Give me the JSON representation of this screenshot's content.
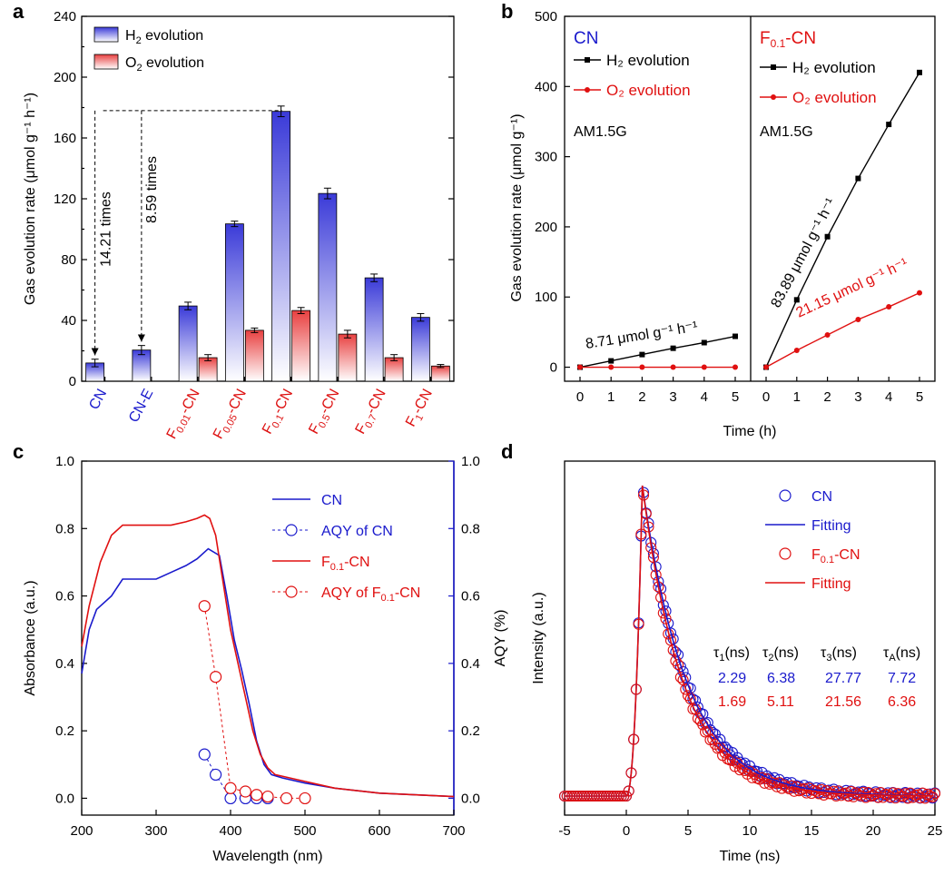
{
  "chart_data": [
    {
      "panel": "a",
      "type": "bar",
      "ylabel": "Gas evolution rate (μmol g⁻¹ h⁻¹)",
      "ylim": [
        0,
        240
      ],
      "yticks": [
        0,
        40,
        80,
        120,
        160,
        200,
        240
      ],
      "categories": [
        {
          "main": "CN",
          "sub": "",
          "rest": "",
          "color": "#1a1acc"
        },
        {
          "main": "CN-E",
          "sub": "",
          "rest": "",
          "color": "#1a1acc"
        },
        {
          "main": "F",
          "sub": "0.01",
          "rest": "-CN",
          "color": "#dd1111"
        },
        {
          "main": "F",
          "sub": "0.05",
          "rest": "-CN",
          "color": "#dd1111"
        },
        {
          "main": "F",
          "sub": "0.1",
          "rest": "-CN",
          "color": "#dd1111"
        },
        {
          "main": "F",
          "sub": "0.5",
          "rest": "-CN",
          "color": "#dd1111"
        },
        {
          "main": "F",
          "sub": "0.7",
          "rest": "-CN",
          "color": "#dd1111"
        },
        {
          "main": "F",
          "sub": "1",
          "rest": "-CN",
          "color": "#dd1111"
        }
      ],
      "series": [
        {
          "name_main": "H",
          "name_sub": "2",
          "name_rest": " evolution",
          "color": "#3a3ad8",
          "values": [
            12,
            20.5,
            49.5,
            103.5,
            177.5,
            123.5,
            68,
            42
          ],
          "errors": [
            2.5,
            3,
            2.5,
            1.8,
            3.5,
            3.5,
            2.5,
            2.5
          ]
        },
        {
          "name_main": "O",
          "name_sub": "2",
          "name_rest": " evolution",
          "color": "#e84040",
          "values": [
            null,
            null,
            15.5,
            33.5,
            46.5,
            31,
            15.5,
            10
          ],
          "errors": [
            0,
            0,
            2,
            1.5,
            2,
            2.5,
            2,
            1
          ]
        }
      ],
      "annotations": [
        "14.21 times",
        "8.59 times"
      ]
    },
    {
      "panel": "b",
      "type": "line",
      "ylabel": "Gas evolution rate (μmol g⁻¹)",
      "xlabel": "Time (h)",
      "ylim": [
        -20,
        500
      ],
      "yticks": [
        0,
        100,
        200,
        300,
        400,
        500
      ],
      "xticks": [
        0,
        1,
        2,
        3,
        4,
        5
      ],
      "subpanels": [
        {
          "title_main": "CN",
          "title_sub": "",
          "title_rest": "",
          "condition": "AM1.5G",
          "rate_label": "8.71 μmol g⁻¹ h⁻¹",
          "x": [
            0,
            1,
            2,
            3,
            4,
            5
          ],
          "series": [
            {
              "name": "H₂ evolution",
              "color": "#000000",
              "marker": "square",
              "values": [
                0,
                9,
                18,
                27,
                35,
                44
              ]
            },
            {
              "name": "O₂ evolution",
              "color": "#e01010",
              "marker": "circle",
              "values": [
                0,
                0,
                0,
                0,
                0,
                0
              ]
            }
          ]
        },
        {
          "title_main": "F",
          "title_sub": "0.1",
          "title_rest": "-CN",
          "condition": "AM1.5G",
          "rate_label_h2": "83.89 μmol g⁻¹ h⁻¹",
          "rate_label_o2": "21.15 μmol g⁻¹ h⁻¹",
          "x": [
            0,
            1,
            2,
            3,
            4,
            5
          ],
          "series": [
            {
              "name": "H₂ evolution",
              "color": "#000000",
              "marker": "square",
              "values": [
                0,
                96,
                186,
                269,
                346,
                420
              ]
            },
            {
              "name": "O₂ evolution",
              "color": "#e01010",
              "marker": "circle",
              "values": [
                0,
                24,
                46,
                68,
                86,
                106
              ]
            }
          ]
        }
      ]
    },
    {
      "panel": "c",
      "type": "line",
      "xlabel": "Wavelength (nm)",
      "ylabel": "Absorbance (a.u.)",
      "ylabel_right": "AQY (%)",
      "xlim": [
        200,
        700
      ],
      "ylim": [
        -0.05,
        1.0
      ],
      "xticks": [
        200,
        300,
        400,
        500,
        600,
        700
      ],
      "yticks": [
        0.0,
        0.2,
        0.4,
        0.6,
        0.8,
        1.0
      ],
      "series": [
        {
          "name": "CN",
          "color": "#1a1acc",
          "style": "line",
          "x": [
            200,
            210,
            220,
            240,
            255,
            270,
            300,
            320,
            340,
            355,
            370,
            385,
            395,
            405,
            415,
            425,
            435,
            445,
            455,
            470,
            500,
            540,
            600,
            650,
            700
          ],
          "y": [
            0.37,
            0.5,
            0.56,
            0.6,
            0.65,
            0.65,
            0.65,
            0.67,
            0.69,
            0.71,
            0.74,
            0.72,
            0.6,
            0.47,
            0.38,
            0.28,
            0.17,
            0.1,
            0.07,
            0.06,
            0.045,
            0.03,
            0.015,
            0.01,
            0.005
          ]
        },
        {
          "name": "F₀.₁-CN",
          "color": "#e01010",
          "style": "line",
          "x": [
            200,
            210,
            225,
            240,
            255,
            270,
            300,
            320,
            340,
            355,
            365,
            372,
            380,
            390,
            400,
            410,
            420,
            430,
            440,
            450,
            460,
            480,
            500,
            540,
            600,
            650,
            700
          ],
          "y": [
            0.45,
            0.57,
            0.7,
            0.78,
            0.81,
            0.81,
            0.81,
            0.81,
            0.82,
            0.83,
            0.84,
            0.83,
            0.78,
            0.64,
            0.5,
            0.4,
            0.3,
            0.2,
            0.13,
            0.09,
            0.07,
            0.06,
            0.05,
            0.03,
            0.015,
            0.01,
            0.005
          ]
        },
        {
          "name": "AQY of CN",
          "color": "#1a1acc",
          "style": "dashed-circles",
          "x": [
            365,
            380,
            400,
            420,
            435,
            450
          ],
          "y": [
            0.13,
            0.07,
            0.0,
            0.0,
            0.0,
            0.0
          ]
        },
        {
          "name": "AQY of F₀.₁-CN",
          "color": "#e01010",
          "style": "dashed-circles",
          "x": [
            365,
            380,
            400,
            420,
            435,
            450,
            475,
            500
          ],
          "y": [
            0.57,
            0.36,
            0.03,
            0.02,
            0.01,
            0.005,
            0.0,
            0.0
          ]
        }
      ],
      "legend": [
        {
          "label_main": "CN",
          "label_sub": "",
          "label_rest": ""
        },
        {
          "label_main": "AQY of CN",
          "label_sub": "",
          "label_rest": ""
        },
        {
          "label_main": "F",
          "label_sub": "0.1",
          "label_rest": "-CN"
        },
        {
          "label_main": "AQY of F",
          "label_sub": "0.1",
          "label_rest": "-CN"
        }
      ]
    },
    {
      "panel": "d",
      "type": "scatter",
      "xlabel": "Time (ns)",
      "ylabel": "Intensity (a.u.)",
      "xlim": [
        -5,
        25
      ],
      "xticks": [
        -5,
        0,
        5,
        10,
        15,
        20,
        25
      ],
      "series": [
        {
          "name": "CN",
          "color": "#1a1acc",
          "style": "circles"
        },
        {
          "name": "Fitting",
          "color": "#1a1acc",
          "style": "line"
        },
        {
          "name": "F₀.₁-CN",
          "color": "#e01010",
          "style": "circles"
        },
        {
          "name": "Fitting",
          "color": "#e01010",
          "style": "line"
        }
      ],
      "legend": [
        {
          "label_main": "CN",
          "label_sub": "",
          "label_rest": ""
        },
        {
          "label_main": "Fitting",
          "label_sub": "",
          "label_rest": ""
        },
        {
          "label_main": "F",
          "label_sub": "0.1",
          "label_rest": "-CN"
        },
        {
          "label_main": "Fitting",
          "label_sub": "",
          "label_rest": ""
        }
      ],
      "table": {
        "headers": [
          {
            "main": "τ",
            "sub": "1",
            "rest": "(ns)"
          },
          {
            "main": "τ",
            "sub": "2",
            "rest": "(ns)"
          },
          {
            "main": "τ",
            "sub": "3",
            "rest": "(ns)"
          },
          {
            "main": "τ",
            "sub": "A",
            "rest": "(ns)"
          }
        ],
        "rows": [
          {
            "color": "#1a1acc",
            "values": [
              "2.29",
              "6.38",
              "27.77",
              "7.72"
            ]
          },
          {
            "color": "#e01010",
            "values": [
              "1.69",
              "5.11",
              "21.56",
              "6.36"
            ]
          }
        ]
      }
    }
  ],
  "panel_letters": [
    "a",
    "b",
    "c",
    "d"
  ]
}
